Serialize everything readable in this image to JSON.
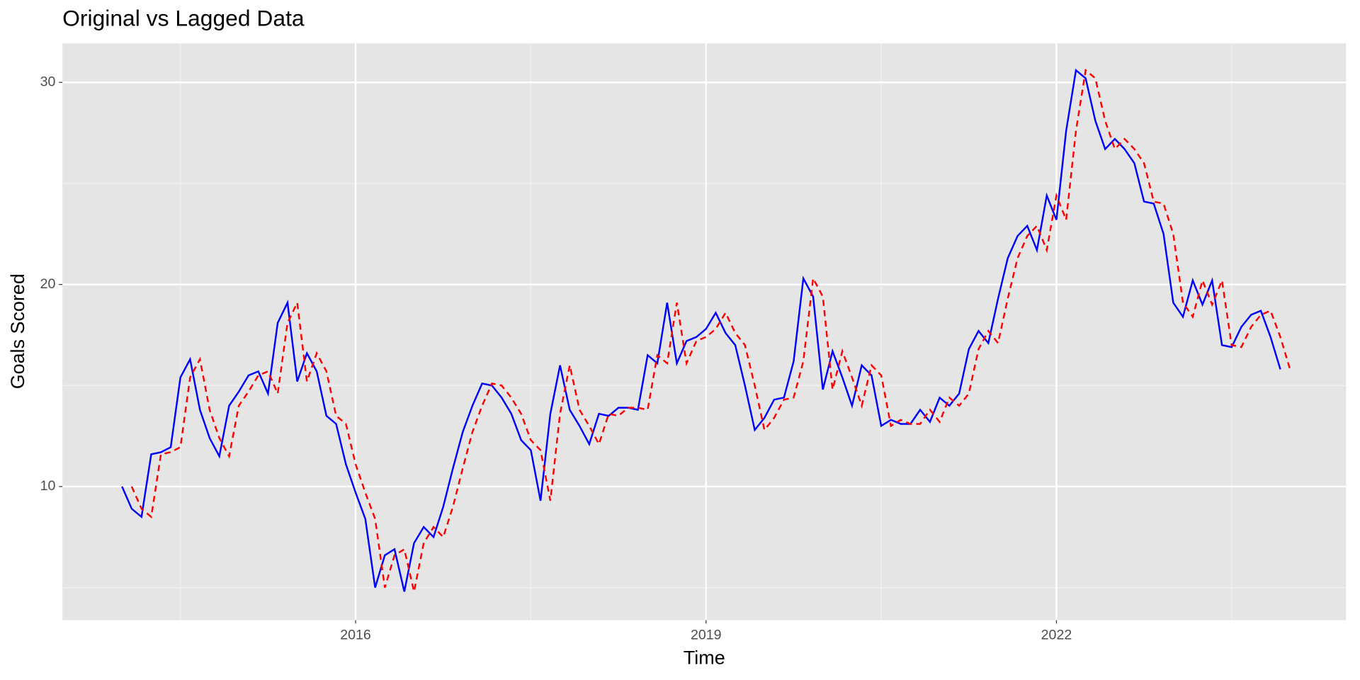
{
  "chart_data": {
    "type": "line",
    "title": "Original vs Lagged Data",
    "x_label": "Time",
    "y_label": "Goals Scored",
    "x": [
      2014,
      2014.083,
      2014.167,
      2014.25,
      2014.333,
      2014.417,
      2014.5,
      2014.583,
      2014.667,
      2014.75,
      2014.833,
      2014.917,
      2015,
      2015.083,
      2015.167,
      2015.25,
      2015.333,
      2015.417,
      2015.5,
      2015.583,
      2015.667,
      2015.75,
      2015.833,
      2015.917,
      2016,
      2016.083,
      2016.167,
      2016.25,
      2016.333,
      2016.417,
      2016.5,
      2016.583,
      2016.667,
      2016.75,
      2016.833,
      2016.917,
      2017,
      2017.083,
      2017.167,
      2017.25,
      2017.333,
      2017.417,
      2017.5,
      2017.583,
      2017.667,
      2017.75,
      2017.833,
      2017.917,
      2018,
      2018.083,
      2018.167,
      2018.25,
      2018.333,
      2018.417,
      2018.5,
      2018.583,
      2018.667,
      2018.75,
      2018.833,
      2018.917,
      2019,
      2019.083,
      2019.167,
      2019.25,
      2019.333,
      2019.417,
      2019.5,
      2019.583,
      2019.667,
      2019.75,
      2019.833,
      2019.917,
      2020,
      2020.083,
      2020.167,
      2020.25,
      2020.333,
      2020.417,
      2020.5,
      2020.583,
      2020.667,
      2020.75,
      2020.833,
      2020.917,
      2021,
      2021.083,
      2021.167,
      2021.25,
      2021.333,
      2021.417,
      2021.5,
      2021.583,
      2021.667,
      2021.75,
      2021.833,
      2021.917,
      2022,
      2022.083,
      2022.167,
      2022.25,
      2022.333,
      2022.417,
      2022.5,
      2022.583,
      2022.667,
      2022.75,
      2022.833,
      2022.917,
      2023,
      2023.083,
      2023.167,
      2023.25,
      2023.333,
      2023.417,
      2023.5,
      2023.583,
      2023.667,
      2023.75,
      2023.833,
      2023.917,
      2024
    ],
    "series": [
      {
        "color": "#0000ff",
        "linestyle": "solid",
        "values": [
          10.0,
          8.9,
          8.5,
          11.6,
          11.7,
          11.95,
          15.4,
          16.3,
          13.8,
          12.4,
          11.5,
          14.0,
          14.7,
          15.5,
          15.7,
          14.6,
          18.1,
          19.1,
          15.2,
          16.6,
          15.7,
          13.5,
          13.1,
          11.1,
          9.7,
          8.4,
          5.0,
          6.6,
          6.9,
          4.8,
          7.2,
          8.0,
          7.5,
          9.0,
          10.9,
          12.7,
          14.0,
          15.1,
          15.0,
          14.4,
          13.6,
          12.3,
          11.8,
          9.3,
          13.6,
          16.0,
          13.8,
          13.0,
          12.1,
          13.6,
          13.5,
          13.9,
          13.9,
          13.8,
          16.5,
          16.1,
          19.1,
          16.1,
          17.2,
          17.4,
          17.8,
          18.6,
          17.6,
          17.0,
          15.0,
          12.8,
          13.4,
          14.3,
          14.4,
          16.2,
          20.3,
          19.4,
          14.8,
          16.7,
          15.4,
          14.0,
          16.0,
          15.5,
          13.0,
          13.3,
          13.1,
          13.1,
          13.8,
          13.2,
          14.4,
          14.0,
          14.6,
          16.8,
          17.7,
          17.1,
          19.3,
          21.3,
          22.4,
          22.9,
          21.7,
          24.4,
          23.2,
          27.6,
          30.6,
          30.2,
          28.1,
          26.7,
          27.2,
          26.7,
          26.0,
          24.1,
          24.0,
          22.5,
          19.1,
          18.4,
          20.2,
          19.0,
          20.2,
          17.0,
          16.9,
          17.9,
          18.5,
          18.7,
          17.4,
          15.8,
          null
        ]
      },
      {
        "color": "#ff0000",
        "linestyle": "dashed",
        "values": [
          null,
          10.0,
          8.9,
          8.5,
          11.6,
          11.7,
          11.95,
          15.4,
          16.3,
          13.8,
          12.4,
          11.5,
          14.0,
          14.7,
          15.5,
          15.7,
          14.6,
          18.1,
          19.1,
          15.2,
          16.6,
          15.7,
          13.5,
          13.1,
          11.1,
          9.7,
          8.4,
          5.0,
          6.6,
          6.9,
          4.8,
          7.2,
          8.0,
          7.5,
          9.0,
          10.9,
          12.7,
          14.0,
          15.1,
          15.0,
          14.4,
          13.6,
          12.3,
          11.8,
          9.3,
          13.6,
          16.0,
          13.8,
          13.0,
          12.1,
          13.6,
          13.5,
          13.9,
          13.9,
          13.8,
          16.5,
          16.1,
          19.1,
          16.1,
          17.2,
          17.4,
          17.8,
          18.6,
          17.6,
          17.0,
          15.0,
          12.8,
          13.4,
          14.3,
          14.4,
          16.2,
          20.3,
          19.4,
          14.8,
          16.7,
          15.4,
          14.0,
          16.0,
          15.5,
          13.0,
          13.3,
          13.1,
          13.1,
          13.8,
          13.2,
          14.4,
          14.0,
          14.6,
          16.8,
          17.7,
          17.1,
          19.3,
          21.3,
          22.4,
          22.9,
          21.7,
          24.4,
          23.2,
          27.6,
          30.6,
          30.2,
          28.1,
          26.7,
          27.2,
          26.7,
          26.0,
          24.1,
          24.0,
          22.5,
          19.1,
          18.4,
          20.2,
          19.0,
          20.2,
          17.0,
          16.9,
          17.9,
          18.5,
          18.7,
          17.4,
          15.8
        ]
      }
    ],
    "xlim": [
      2013.49,
      2024.48
    ],
    "ylim": [
      3.39,
      31.93
    ],
    "xticks": [
      2016,
      2019,
      2022
    ],
    "yticks": [
      10,
      20,
      30
    ],
    "minor_xticks": [
      2014.5,
      2017.5,
      2020.5,
      2023.5
    ],
    "minor_yticks": [
      5,
      15,
      25
    ],
    "grid": true
  }
}
